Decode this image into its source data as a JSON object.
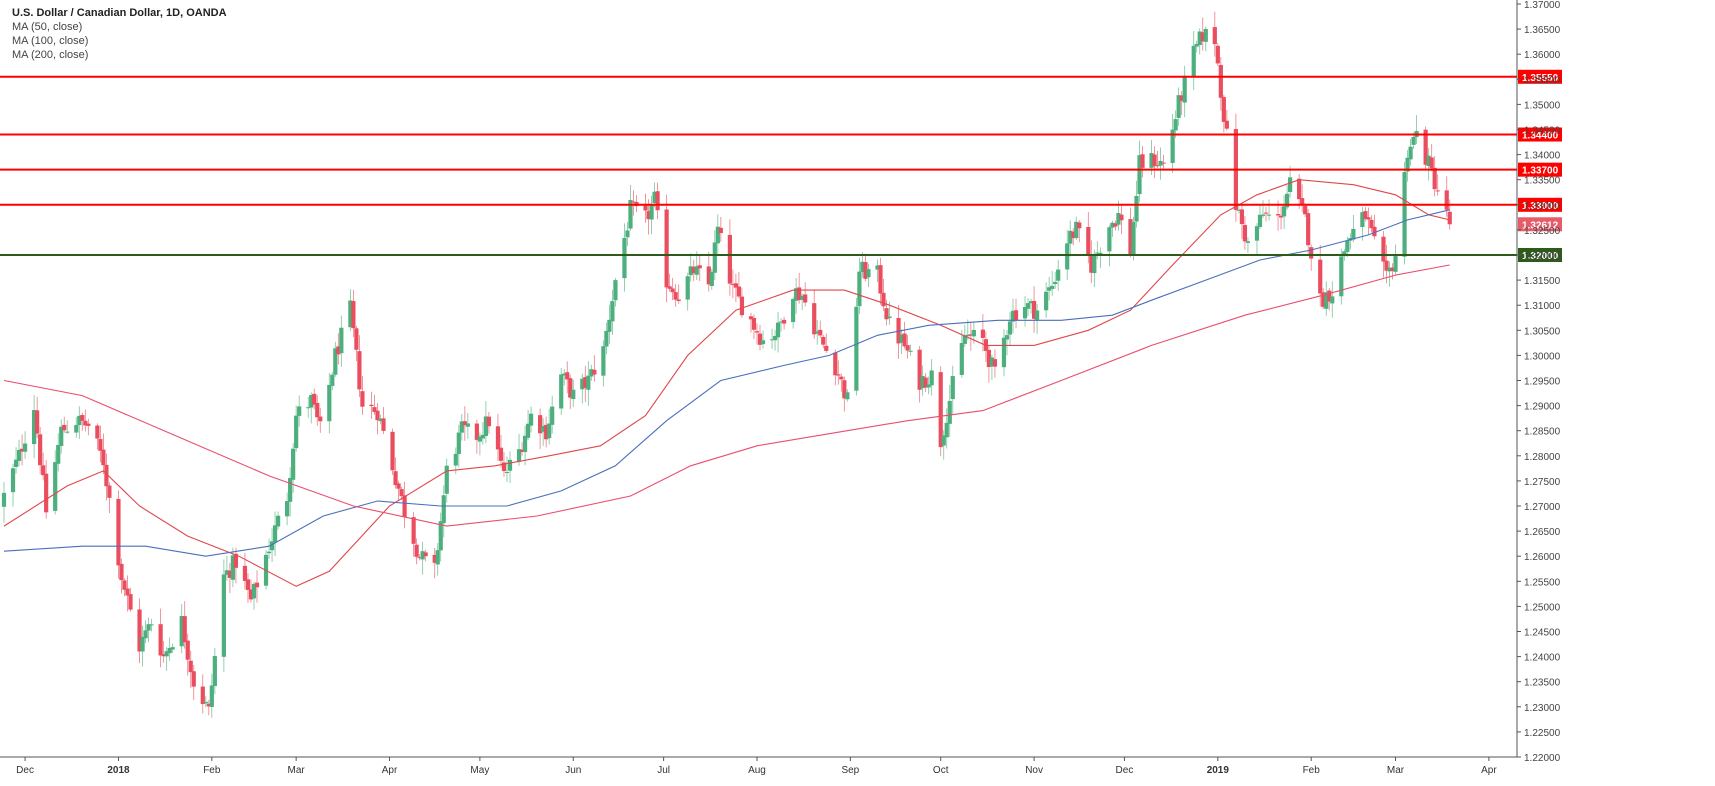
{
  "legend": {
    "title": "U.S. Dollar / Canadian Dollar, 1D, OANDA",
    "ma": [
      "MA (50, close)",
      "MA (100, close)",
      "MA (200, close)"
    ]
  },
  "chart_data": {
    "type": "candlestick",
    "ylim": [
      1.22,
      1.37
    ],
    "y_ticks": [
      "1.37000",
      "1.36500",
      "1.36000",
      "1.35500",
      "1.35000",
      "1.34500",
      "1.34000",
      "1.33500",
      "1.33000",
      "1.32500",
      "1.32000",
      "1.31500",
      "1.31000",
      "1.30500",
      "1.30000",
      "1.29500",
      "1.29000",
      "1.28500",
      "1.28000",
      "1.27500",
      "1.27000",
      "1.26500",
      "1.26000",
      "1.25500",
      "1.25000",
      "1.24500",
      "1.24000",
      "1.23500",
      "1.23000",
      "1.22500",
      "1.22000"
    ],
    "x_ticks": [
      {
        "label": "Dec",
        "date": "2017-12-01"
      },
      {
        "label": "2018",
        "date": "2018-01-01",
        "bold": true
      },
      {
        "label": "Feb",
        "date": "2018-02-01"
      },
      {
        "label": "Mar",
        "date": "2018-03-01"
      },
      {
        "label": "Apr",
        "date": "2018-04-01"
      },
      {
        "label": "May",
        "date": "2018-05-01"
      },
      {
        "label": "Jun",
        "date": "2018-06-01"
      },
      {
        "label": "Jul",
        "date": "2018-07-01"
      },
      {
        "label": "Aug",
        "date": "2018-08-01"
      },
      {
        "label": "Sep",
        "date": "2018-09-01"
      },
      {
        "label": "Oct",
        "date": "2018-10-01"
      },
      {
        "label": "Nov",
        "date": "2018-11-01"
      },
      {
        "label": "Dec",
        "date": "2018-12-01"
      },
      {
        "label": "2019",
        "date": "2019-01-01",
        "bold": true
      },
      {
        "label": "Feb",
        "date": "2019-02-01"
      },
      {
        "label": "Mar",
        "date": "2019-03-01"
      },
      {
        "label": "Apr",
        "date": "2019-04-01"
      }
    ],
    "x_range": [
      "2017-11-24",
      "2019-04-10"
    ],
    "horizontal_levels": [
      {
        "value": 1.3555,
        "label": "1.35550",
        "color": "#ff0000"
      },
      {
        "value": 1.344,
        "label": "1.34400",
        "color": "#ff0000"
      },
      {
        "value": 1.337,
        "label": "1.33700",
        "color": "#ff0000"
      },
      {
        "value": 1.33,
        "label": "1.33000",
        "color": "#ff0000"
      },
      {
        "value": 1.32,
        "label": "1.32000",
        "color": "#2e5a1c"
      }
    ],
    "last_price": {
      "value": 1.32612,
      "label": "1.32612",
      "color": "#e85c6a"
    },
    "colors": {
      "up": "#4caf7d",
      "down": "#ea4e5e",
      "ma50": "#e0474c",
      "ma100": "#4a6fbd",
      "ma200": "#ea4e6e"
    },
    "close_path": [
      [
        "2017-11-24",
        1.272
      ],
      [
        "2017-11-29",
        1.28
      ],
      [
        "2017-12-04",
        1.29
      ],
      [
        "2017-12-08",
        1.269
      ],
      [
        "2017-12-13",
        1.285
      ],
      [
        "2017-12-18",
        1.287
      ],
      [
        "2017-12-22",
        1.286
      ],
      [
        "2017-12-27",
        1.279
      ],
      [
        "2018-01-02",
        1.256
      ],
      [
        "2018-01-08",
        1.242
      ],
      [
        "2018-01-12",
        1.247
      ],
      [
        "2018-01-16",
        1.24
      ],
      [
        "2018-01-22",
        1.247
      ],
      [
        "2018-01-26",
        1.235
      ],
      [
        "2018-01-31",
        1.229
      ],
      [
        "2018-02-05",
        1.256
      ],
      [
        "2018-02-09",
        1.259
      ],
      [
        "2018-02-14",
        1.251
      ],
      [
        "2018-02-20",
        1.262
      ],
      [
        "2018-02-26",
        1.272
      ],
      [
        "2018-03-01",
        1.288
      ],
      [
        "2018-03-06",
        1.291
      ],
      [
        "2018-03-09",
        1.285
      ],
      [
        "2018-03-14",
        1.3
      ],
      [
        "2018-03-19",
        1.309
      ],
      [
        "2018-03-23",
        1.29
      ],
      [
        "2018-03-28",
        1.289
      ],
      [
        "2018-04-02",
        1.278
      ],
      [
        "2018-04-06",
        1.269
      ],
      [
        "2018-04-11",
        1.26
      ],
      [
        "2018-04-16",
        1.257
      ],
      [
        "2018-04-20",
        1.277
      ],
      [
        "2018-04-25",
        1.285
      ],
      [
        "2018-04-30",
        1.284
      ],
      [
        "2018-05-04",
        1.287
      ],
      [
        "2018-05-09",
        1.276
      ],
      [
        "2018-05-14",
        1.281
      ],
      [
        "2018-05-18",
        1.288
      ],
      [
        "2018-05-23",
        1.285
      ],
      [
        "2018-05-28",
        1.296
      ],
      [
        "2018-06-01",
        1.292
      ],
      [
        "2018-06-06",
        1.295
      ],
      [
        "2018-06-11",
        1.301
      ],
      [
        "2018-06-15",
        1.315
      ],
      [
        "2018-06-20",
        1.329
      ],
      [
        "2018-06-25",
        1.327
      ],
      [
        "2018-06-28",
        1.331
      ],
      [
        "2018-07-02",
        1.315
      ],
      [
        "2018-07-06",
        1.312
      ],
      [
        "2018-07-11",
        1.317
      ],
      [
        "2018-07-16",
        1.314
      ],
      [
        "2018-07-19",
        1.325
      ],
      [
        "2018-07-24",
        1.313
      ],
      [
        "2018-07-30",
        1.307
      ],
      [
        "2018-08-03",
        1.303
      ],
      [
        "2018-08-08",
        1.305
      ],
      [
        "2018-08-13",
        1.313
      ],
      [
        "2018-08-16",
        1.312
      ],
      [
        "2018-08-22",
        1.303
      ],
      [
        "2018-08-27",
        1.298
      ],
      [
        "2018-08-31",
        1.291
      ],
      [
        "2018-09-04",
        1.317
      ],
      [
        "2018-09-10",
        1.316
      ],
      [
        "2018-09-14",
        1.306
      ],
      [
        "2018-09-19",
        1.302
      ],
      [
        "2018-09-24",
        1.295
      ],
      [
        "2018-09-28",
        1.296
      ],
      [
        "2018-10-01",
        1.283
      ],
      [
        "2018-10-05",
        1.294
      ],
      [
        "2018-10-09",
        1.304
      ],
      [
        "2018-10-15",
        1.303
      ],
      [
        "2018-10-19",
        1.296
      ],
      [
        "2018-10-24",
        1.308
      ],
      [
        "2018-10-29",
        1.31
      ],
      [
        "2018-11-02",
        1.309
      ],
      [
        "2018-11-07",
        1.314
      ],
      [
        "2018-11-12",
        1.323
      ],
      [
        "2018-11-15",
        1.325
      ],
      [
        "2018-11-20",
        1.318
      ],
      [
        "2018-11-26",
        1.326
      ],
      [
        "2018-11-29",
        1.328
      ],
      [
        "2018-12-03",
        1.321
      ],
      [
        "2018-12-06",
        1.338
      ],
      [
        "2018-12-11",
        1.339
      ],
      [
        "2018-12-14",
        1.338
      ],
      [
        "2018-12-19",
        1.35
      ],
      [
        "2018-12-24",
        1.36
      ],
      [
        "2018-12-27",
        1.364
      ],
      [
        "2018-12-31",
        1.363
      ],
      [
        "2019-01-03",
        1.348
      ],
      [
        "2019-01-07",
        1.33
      ],
      [
        "2019-01-11",
        1.322
      ],
      [
        "2019-01-16",
        1.328
      ],
      [
        "2019-01-21",
        1.327
      ],
      [
        "2019-01-25",
        1.334
      ],
      [
        "2019-01-30",
        1.327
      ],
      [
        "2019-02-04",
        1.311
      ],
      [
        "2019-02-08",
        1.313
      ],
      [
        "2019-02-13",
        1.323
      ],
      [
        "2019-02-19",
        1.328
      ],
      [
        "2019-02-22",
        1.322
      ],
      [
        "2019-02-26",
        1.315
      ],
      [
        "2019-03-01",
        1.32
      ],
      [
        "2019-03-05",
        1.341
      ],
      [
        "2019-03-08",
        1.344
      ],
      [
        "2019-03-12",
        1.338
      ],
      [
        "2019-03-15",
        1.333
      ],
      [
        "2019-03-19",
        1.3261
      ]
    ],
    "ma_paths": {
      "ma50": [
        [
          "2017-11-24",
          1.266
        ],
        [
          "2017-12-15",
          1.274
        ],
        [
          "2017-12-27",
          1.277
        ],
        [
          "2018-01-08",
          1.27
        ],
        [
          "2018-01-24",
          1.264
        ],
        [
          "2018-02-10",
          1.26
        ],
        [
          "2018-03-01",
          1.254
        ],
        [
          "2018-03-12",
          1.257
        ],
        [
          "2018-04-01",
          1.27
        ],
        [
          "2018-04-20",
          1.277
        ],
        [
          "2018-05-06",
          1.278
        ],
        [
          "2018-05-24",
          1.28
        ],
        [
          "2018-06-10",
          1.282
        ],
        [
          "2018-06-25",
          1.288
        ],
        [
          "2018-07-09",
          1.3
        ],
        [
          "2018-07-25",
          1.309
        ],
        [
          "2018-08-13",
          1.313
        ],
        [
          "2018-08-30",
          1.313
        ],
        [
          "2018-09-14",
          1.31
        ],
        [
          "2018-10-01",
          1.306
        ],
        [
          "2018-10-16",
          1.302
        ],
        [
          "2018-11-01",
          1.302
        ],
        [
          "2018-11-19",
          1.305
        ],
        [
          "2018-12-03",
          1.309
        ],
        [
          "2018-12-17",
          1.318
        ],
        [
          "2019-01-02",
          1.328
        ],
        [
          "2019-01-14",
          1.332
        ],
        [
          "2019-01-28",
          1.335
        ],
        [
          "2019-02-15",
          1.334
        ],
        [
          "2019-03-01",
          1.332
        ],
        [
          "2019-03-12",
          1.328
        ],
        [
          "2019-03-19",
          1.327
        ]
      ],
      "ma100": [
        [
          "2017-11-24",
          1.261
        ],
        [
          "2017-12-20",
          1.262
        ],
        [
          "2018-01-10",
          1.262
        ],
        [
          "2018-01-30",
          1.26
        ],
        [
          "2018-02-20",
          1.262
        ],
        [
          "2018-03-10",
          1.268
        ],
        [
          "2018-03-28",
          1.271
        ],
        [
          "2018-04-18",
          1.27
        ],
        [
          "2018-05-10",
          1.27
        ],
        [
          "2018-05-28",
          1.273
        ],
        [
          "2018-06-15",
          1.278
        ],
        [
          "2018-07-02",
          1.287
        ],
        [
          "2018-07-20",
          1.295
        ],
        [
          "2018-08-10",
          1.298
        ],
        [
          "2018-08-25",
          1.3
        ],
        [
          "2018-09-10",
          1.304
        ],
        [
          "2018-09-27",
          1.306
        ],
        [
          "2018-10-20",
          1.307
        ],
        [
          "2018-11-10",
          1.307
        ],
        [
          "2018-11-27",
          1.308
        ],
        [
          "2018-12-10",
          1.311
        ],
        [
          "2018-12-28",
          1.315
        ],
        [
          "2019-01-15",
          1.319
        ],
        [
          "2019-02-01",
          1.321
        ],
        [
          "2019-02-20",
          1.324
        ],
        [
          "2019-03-05",
          1.327
        ],
        [
          "2019-03-19",
          1.329
        ]
      ],
      "ma200": [
        [
          "2017-11-24",
          1.295
        ],
        [
          "2017-12-20",
          1.292
        ],
        [
          "2018-01-20",
          1.284
        ],
        [
          "2018-02-20",
          1.276
        ],
        [
          "2018-03-20",
          1.27
        ],
        [
          "2018-04-20",
          1.266
        ],
        [
          "2018-05-20",
          1.268
        ],
        [
          "2018-06-20",
          1.272
        ],
        [
          "2018-07-10",
          1.278
        ],
        [
          "2018-08-01",
          1.282
        ],
        [
          "2018-08-31",
          1.285
        ],
        [
          "2018-09-20",
          1.287
        ],
        [
          "2018-10-15",
          1.289
        ],
        [
          "2018-11-10",
          1.295
        ],
        [
          "2018-12-10",
          1.302
        ],
        [
          "2019-01-10",
          1.308
        ],
        [
          "2019-02-05",
          1.312
        ],
        [
          "2019-03-01",
          1.316
        ],
        [
          "2019-03-19",
          1.318
        ]
      ]
    }
  }
}
